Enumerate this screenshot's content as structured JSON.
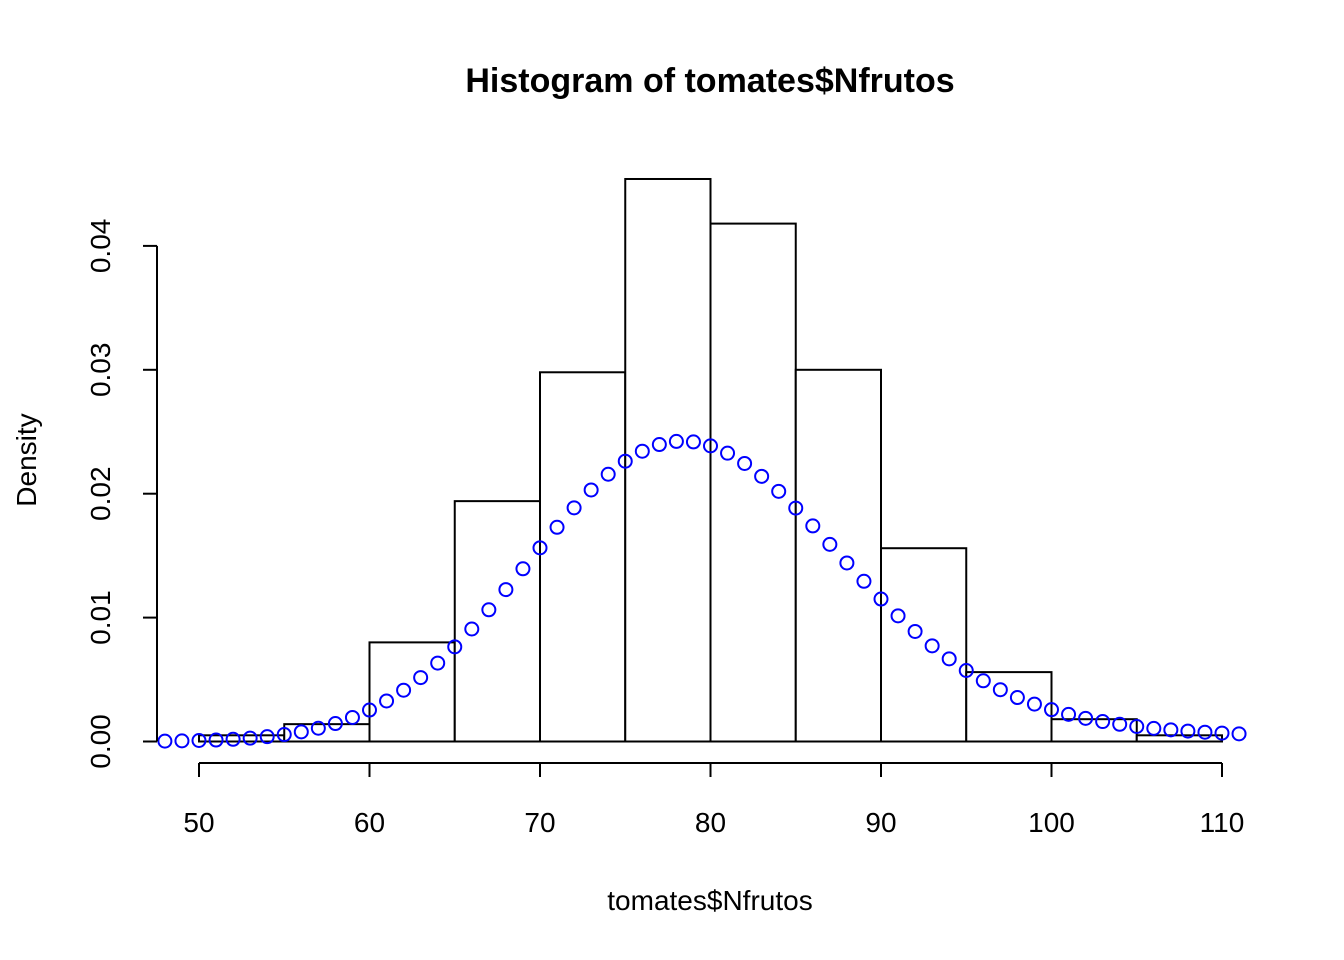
{
  "chart_data": {
    "type": "bar",
    "title": "Histogram of tomates$Nfrutos",
    "xlabel": "tomates$Nfrutos",
    "ylabel": "Density",
    "xlim": [
      48,
      111
    ],
    "ylim": [
      0,
      0.0455
    ],
    "x_ticks": [
      50,
      60,
      70,
      80,
      90,
      100,
      110
    ],
    "x_tick_labels": [
      "50",
      "60",
      "70",
      "80",
      "90",
      "100",
      "110"
    ],
    "y_ticks": [
      0.0,
      0.01,
      0.02,
      0.03,
      0.04
    ],
    "y_tick_labels": [
      "0.00",
      "0.01",
      "0.02",
      "0.03",
      "0.04"
    ],
    "histogram": {
      "breaks": [
        50,
        55,
        60,
        65,
        70,
        75,
        80,
        85,
        90,
        95,
        100,
        105,
        110
      ],
      "density": [
        0.0005,
        0.0014,
        0.008,
        0.0194,
        0.0298,
        0.0454,
        0.0418,
        0.03,
        0.0156,
        0.0056,
        0.0018,
        0.0005
      ],
      "fill": "#ffffff",
      "stroke": "#000000"
    },
    "series": [
      {
        "type": "scatter",
        "marker": "open-circle",
        "color": "#0000ff",
        "x": [
          48,
          49,
          50,
          51,
          52,
          53,
          54,
          55,
          56,
          57,
          58,
          59,
          60,
          61,
          62,
          63,
          64,
          65,
          66,
          67,
          68,
          69,
          70,
          71,
          72,
          73,
          74,
          75,
          76,
          77,
          78,
          79,
          80,
          81,
          82,
          83,
          84,
          85,
          86,
          87,
          88,
          89,
          90,
          91,
          92,
          93,
          94,
          95,
          96,
          97,
          98,
          99,
          100,
          101,
          102,
          103,
          104,
          105,
          106,
          107,
          108,
          109,
          110,
          111
        ],
        "y": [
          3e-05,
          5e-05,
          8e-05,
          0.00012,
          0.00018,
          0.00027,
          0.00039,
          0.00056,
          0.00078,
          0.00107,
          0.00145,
          0.00194,
          0.00254,
          0.00327,
          0.00414,
          0.00516,
          0.00633,
          0.00764,
          0.00908,
          0.01063,
          0.01226,
          0.01394,
          0.01563,
          0.01729,
          0.01886,
          0.0203,
          0.02157,
          0.02262,
          0.02343,
          0.02397,
          0.02422,
          0.02418,
          0.02386,
          0.02327,
          0.02244,
          0.0214,
          0.02019,
          0.01884,
          0.0174,
          0.01591,
          0.01441,
          0.01293,
          0.0115,
          0.01014,
          0.00888,
          0.00772,
          0.00667,
          0.00573,
          0.0049,
          0.00418,
          0.00355,
          0.00302,
          0.00257,
          0.00219,
          0.00187,
          0.00161,
          0.00139,
          0.00121,
          0.00106,
          0.00094,
          0.00084,
          0.00075,
          0.00068,
          0.00062
        ]
      }
    ]
  }
}
